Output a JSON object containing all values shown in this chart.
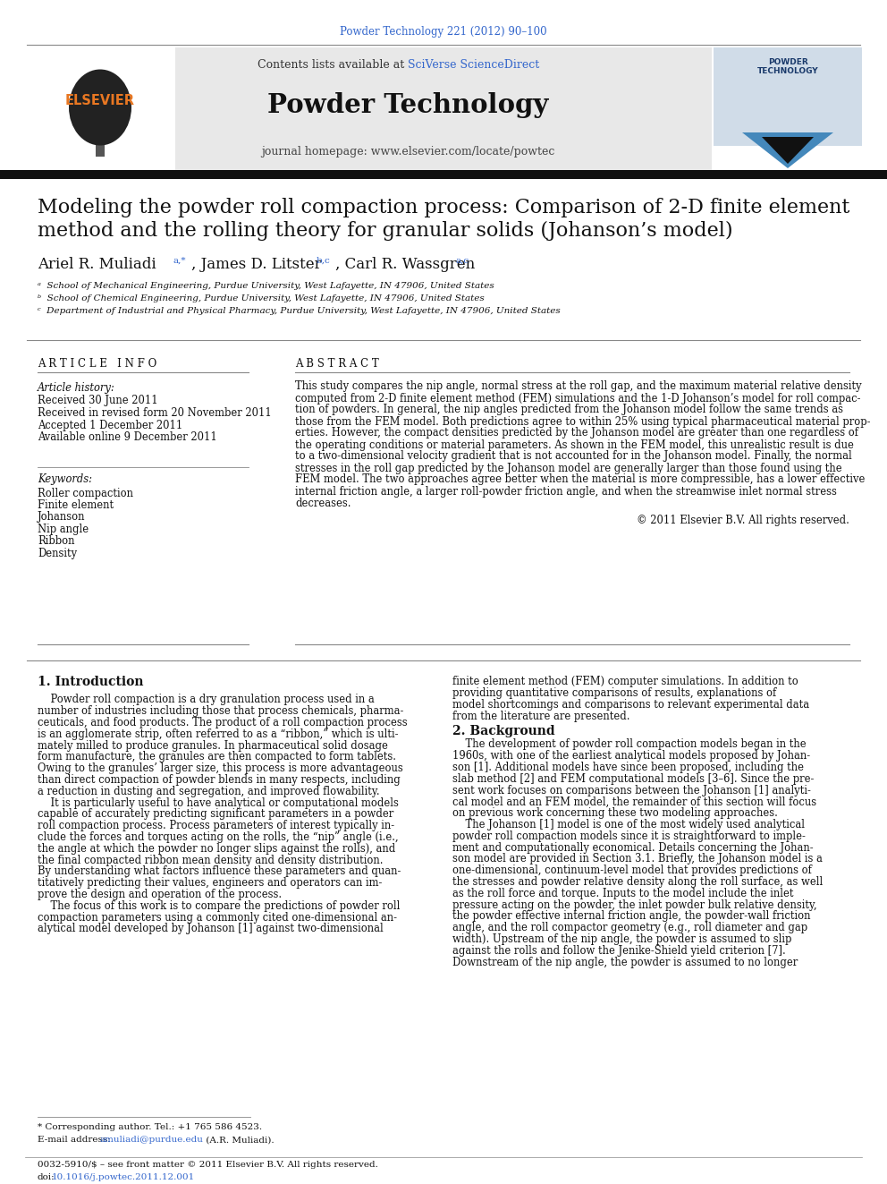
{
  "journal_ref": "Powder Technology 221 (2012) 90–100",
  "journal_ref_color": "#3366cc",
  "header_bg": "#e8e8e8",
  "sciverse_color": "#3366cc",
  "journal_name": "Powder Technology",
  "journal_homepage": "journal homepage: www.elsevier.com/locate/powtec",
  "title_line1": "Modeling the powder roll compaction process: Comparison of 2-D finite element",
  "title_line2": "method and the rolling theory for granular solids (Johanson’s model)",
  "affiliations": [
    "ᵃ  School of Mechanical Engineering, Purdue University, West Lafayette, IN 47906, United States",
    "ᵇ  School of Chemical Engineering, Purdue University, West Lafayette, IN 47906, United States",
    "ᶜ  Department of Industrial and Physical Pharmacy, Purdue University, West Lafayette, IN 47906, United States"
  ],
  "article_info_header": "A R T I C L E   I N F O",
  "abstract_header": "A B S T R A C T",
  "article_history_label": "Article history:",
  "article_history": [
    "Received 30 June 2011",
    "Received in revised form 20 November 2011",
    "Accepted 1 December 2011",
    "Available online 9 December 2011"
  ],
  "keywords_label": "Keywords:",
  "keywords": [
    "Roller compaction",
    "Finite element",
    "Johanson",
    "Nip angle",
    "Ribbon",
    "Density"
  ],
  "abstract_text": "This study compares the nip angle, normal stress at the roll gap, and the maximum material relative density\ncomputed from 2-D finite element method (FEM) simulations and the 1-D Johanson’s model for roll compac-\ntion of powders. In general, the nip angles predicted from the Johanson model follow the same trends as\nthose from the FEM model. Both predictions agree to within 25% using typical pharmaceutical material prop-\nerties. However, the compact densities predicted by the Johanson model are greater than one regardless of\nthe operating conditions or material parameters. As shown in the FEM model, this unrealistic result is due\nto a two-dimensional velocity gradient that is not accounted for in the Johanson model. Finally, the normal\nstresses in the roll gap predicted by the Johanson model are generally larger than those found using the\nFEM model. The two approaches agree better when the material is more compressible, has a lower effective\ninternal friction angle, a larger roll-powder friction angle, and when the streamwise inlet normal stress\ndecreases.",
  "copyright": "© 2011 Elsevier B.V. All rights reserved.",
  "intro_heading": "1. Introduction",
  "background_heading": "2. Background",
  "intro_col1_lines": [
    "    Powder roll compaction is a dry granulation process used in a",
    "number of industries including those that process chemicals, pharma-",
    "ceuticals, and food products. The product of a roll compaction process",
    "is an agglomerate strip, often referred to as a “ribbon,” which is ulti-",
    "mately milled to produce granules. In pharmaceutical solid dosage",
    "form manufacture, the granules are then compacted to form tablets.",
    "Owing to the granules’ larger size, this process is more advantageous",
    "than direct compaction of powder blends in many respects, including",
    "a reduction in dusting and segregation, and improved flowability.",
    "    It is particularly useful to have analytical or computational models",
    "capable of accurately predicting significant parameters in a powder",
    "roll compaction process. Process parameters of interest typically in-",
    "clude the forces and torques acting on the rolls, the “nip” angle (i.e.,",
    "the angle at which the powder no longer slips against the rolls), and",
    "the final compacted ribbon mean density and density distribution.",
    "By understanding what factors influence these parameters and quan-",
    "titatively predicting their values, engineers and operators can im-",
    "prove the design and operation of the process.",
    "    The focus of this work is to compare the predictions of powder roll",
    "compaction parameters using a commonly cited one-dimensional an-",
    "alytical model developed by Johanson [1] against two-dimensional"
  ],
  "intro_col2_lines": [
    "finite element method (FEM) computer simulations. In addition to",
    "providing quantitative comparisons of results, explanations of",
    "model shortcomings and comparisons to relevant experimental data",
    "from the literature are presented."
  ],
  "bg_col2_lines": [
    "    The development of powder roll compaction models began in the",
    "1960s, with one of the earliest analytical models proposed by Johan-",
    "son [1]. Additional models have since been proposed, including the",
    "slab method [2] and FEM computational models [3–6]. Since the pre-",
    "sent work focuses on comparisons between the Johanson [1] analyti-",
    "cal model and an FEM model, the remainder of this section will focus",
    "on previous work concerning these two modeling approaches.",
    "    The Johanson [1] model is one of the most widely used analytical",
    "powder roll compaction models since it is straightforward to imple-",
    "ment and computationally economical. Details concerning the Johan-",
    "son model are provided in Section 3.1. Briefly, the Johanson model is a",
    "one-dimensional, continuum-level model that provides predictions of",
    "the stresses and powder relative density along the roll surface, as well",
    "as the roll force and torque. Inputs to the model include the inlet",
    "pressure acting on the powder, the inlet powder bulk relative density,",
    "the powder effective internal friction angle, the powder-wall friction",
    "angle, and the roll compactor geometry (e.g., roll diameter and gap",
    "width). Upstream of the nip angle, the powder is assumed to slip",
    "against the rolls and follow the Jenike-Shield yield criterion [7].",
    "Downstream of the nip angle, the powder is assumed to no longer"
  ],
  "footnote1": "* Corresponding author. Tel.: +1 765 586 4523.",
  "footnote2_pre": "E-mail address: ",
  "footnote2_email": "amuliadi@purdue.edu",
  "footnote2_post": " (A.R. Muliadi).",
  "footnote_email_color": "#3366cc",
  "footnote3": "0032-5910/$ – see front matter © 2011 Elsevier B.V. All rights reserved.",
  "footnote4_pre": "doi:",
  "footnote4_link": "10.1016/j.powtec.2011.12.001",
  "footnote4_color": "#3366cc",
  "bg_color": "#ffffff",
  "text_color": "#111111",
  "link_color": "#3366cc"
}
